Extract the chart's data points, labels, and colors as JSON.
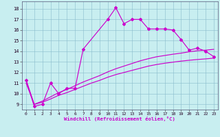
{
  "xlabel": "Windchill (Refroidissement éolien,°C)",
  "background_color": "#c8eef0",
  "line_color": "#cc00cc",
  "grid_color": "#88bbcc",
  "xlim": [
    -0.5,
    23.5
  ],
  "ylim": [
    8.5,
    18.7
  ],
  "yticks": [
    9,
    10,
    11,
    12,
    13,
    14,
    15,
    16,
    17,
    18
  ],
  "xticks": [
    0,
    1,
    2,
    3,
    4,
    5,
    6,
    7,
    8,
    9,
    10,
    11,
    12,
    13,
    14,
    15,
    16,
    17,
    18,
    19,
    20,
    21,
    22,
    23
  ],
  "jagged_x": [
    0,
    1,
    2,
    3,
    4,
    5,
    6,
    7,
    10,
    11,
    12,
    13,
    14,
    15,
    16,
    17,
    18,
    19,
    20,
    21,
    22,
    23
  ],
  "jagged_y": [
    11.3,
    8.8,
    9.0,
    11.0,
    10.0,
    10.5,
    10.5,
    14.2,
    17.0,
    18.1,
    16.6,
    17.0,
    17.0,
    16.1,
    16.1,
    16.1,
    16.0,
    15.1,
    14.1,
    14.3,
    14.0,
    13.5
  ],
  "smooth1_x": [
    0,
    1,
    2,
    3,
    4,
    5,
    6,
    7,
    8,
    9,
    10,
    11,
    12,
    13,
    14,
    15,
    16,
    17,
    18,
    19,
    20,
    21,
    22,
    23
  ],
  "smooth1_y": [
    11.0,
    9.0,
    9.2,
    9.5,
    9.85,
    10.1,
    10.4,
    10.7,
    11.0,
    11.25,
    11.55,
    11.8,
    12.0,
    12.2,
    12.4,
    12.6,
    12.75,
    12.87,
    12.97,
    13.07,
    13.15,
    13.22,
    13.28,
    13.35
  ],
  "smooth2_x": [
    0,
    1,
    2,
    3,
    4,
    5,
    6,
    7,
    8,
    9,
    10,
    11,
    12,
    13,
    14,
    15,
    16,
    17,
    18,
    19,
    20,
    21,
    22,
    23
  ],
  "smooth2_y": [
    11.3,
    9.0,
    9.3,
    9.7,
    10.1,
    10.4,
    10.75,
    11.1,
    11.4,
    11.7,
    12.05,
    12.35,
    12.6,
    12.85,
    13.1,
    13.3,
    13.48,
    13.6,
    13.72,
    13.82,
    13.95,
    14.05,
    14.1,
    14.18
  ]
}
